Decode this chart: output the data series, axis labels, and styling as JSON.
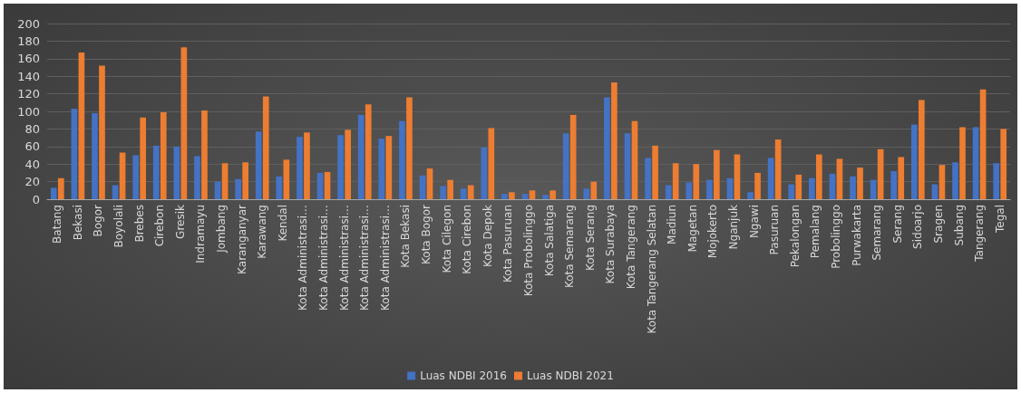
{
  "chart_data": {
    "type": "bar",
    "categories": [
      "Batang",
      "Bekasi",
      "Bogor",
      "Boyolali",
      "Brebes",
      "Cirebon",
      "Gresik",
      "Indramayu",
      "Jombang",
      "Karanganyar",
      "Karawang",
      "Kendal",
      "Kota Administrasi…",
      "Kota Administrasi…",
      "Kota Administrasi…",
      "Kota Administrasi…",
      "Kota Administrasi…",
      "Kota Bekasi",
      "Kota Bogor",
      "Kota Cilegon",
      "Kota Cirebon",
      "Kota Depok",
      "Kota Pasuruan",
      "Kota Probolinggo",
      "Kota Salatiga",
      "Kota Semarang",
      "Kota Serang",
      "Kota Surabaya",
      "Kota Tangerang",
      "Kota Tangerang Selatan",
      "Madiun",
      "Magetan",
      "Mojokerto",
      "Nganjuk",
      "Ngawi",
      "Pasuruan",
      "Pekalongan",
      "Pemalang",
      "Probolinggo",
      "Purwakarta",
      "Semarang",
      "Serang",
      "Sidoarjo",
      "Sragen",
      "Subang",
      "Tangerang",
      "Tegal"
    ],
    "series": [
      {
        "name": "Luas NDBI 2016",
        "color": "#4472c4",
        "values": [
          13,
          103,
          98,
          16,
          50,
          61,
          60,
          49,
          20,
          23,
          77,
          26,
          71,
          30,
          73,
          96,
          69,
          89,
          27,
          15,
          12,
          59,
          6,
          6,
          5,
          75,
          12,
          116,
          75,
          47,
          16,
          19,
          22,
          24,
          8,
          47,
          17,
          24,
          29,
          26,
          22,
          32,
          85,
          17,
          42,
          82,
          41
        ]
      },
      {
        "name": "Luas NDBI 2021",
        "color": "#ed7d31",
        "values": [
          24,
          167,
          152,
          53,
          93,
          99,
          173,
          101,
          41,
          42,
          117,
          45,
          76,
          31,
          79,
          108,
          72,
          116,
          35,
          22,
          16,
          81,
          8,
          10,
          10,
          96,
          20,
          133,
          89,
          61,
          41,
          40,
          56,
          51,
          30,
          68,
          28,
          51,
          46,
          36,
          57,
          48,
          113,
          39,
          82,
          125,
          80
        ]
      }
    ],
    "ylim": [
      0,
      200
    ],
    "yticks": [
      0,
      20,
      40,
      60,
      80,
      100,
      120,
      140,
      160,
      180,
      200
    ],
    "grid": "y",
    "legend": "bottom"
  }
}
